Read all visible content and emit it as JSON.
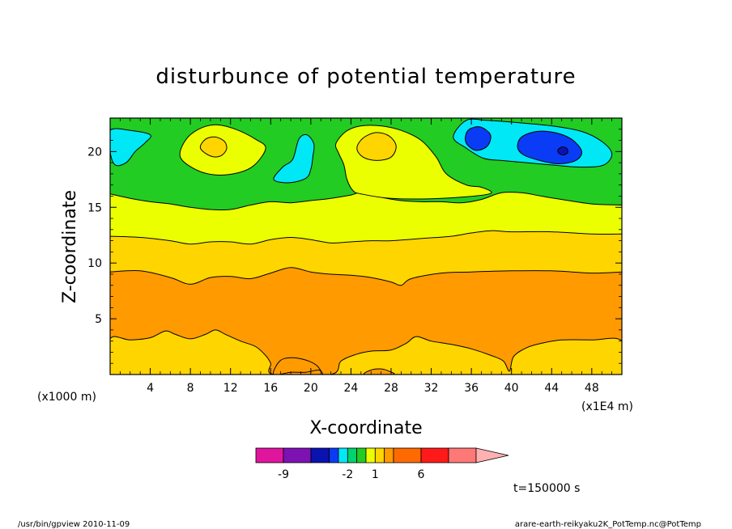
{
  "chart_data": {
    "type": "heatmap",
    "title": "disturbunce of potential temperature",
    "xlabel": "X-coordinate",
    "ylabel": "Z-coordinate",
    "x_unit_left": "(x1000 m)",
    "x_unit_right": "(x1E4 m)",
    "time_label": "t=150000 s",
    "footer_left": "/usr/bin/gpview   2010-11-09",
    "footer_right": "arare-earth-reikyaku2K_PotTemp.nc@PotTemp",
    "xlim": [
      0,
      51
    ],
    "ylim": [
      0,
      23
    ],
    "x_ticks": [
      "4",
      "8",
      "12",
      "16",
      "20",
      "24",
      "28",
      "32",
      "36",
      "40",
      "44",
      "48"
    ],
    "x_tick_values": [
      4,
      8,
      12,
      16,
      20,
      24,
      28,
      32,
      36,
      40,
      44,
      48
    ],
    "y_ticks": [
      "5",
      "10",
      "15",
      "20"
    ],
    "y_tick_values": [
      5,
      10,
      15,
      20
    ],
    "levels": [
      {
        "range": [
          -12,
          -9
        ],
        "color": "#e0159e"
      },
      {
        "range": [
          -9,
          -6
        ],
        "color": "#7d12b3"
      },
      {
        "range": [
          -6,
          -4
        ],
        "color": "#0a12b0"
      },
      {
        "range": [
          -4,
          -3
        ],
        "color": "#0a3cf5"
      },
      {
        "range": [
          -3,
          -2
        ],
        "color": "#00e8f5"
      },
      {
        "range": [
          -2,
          -1
        ],
        "color": "#00d26e"
      },
      {
        "range": [
          -1,
          0
        ],
        "color": "#22cc22"
      },
      {
        "range": [
          0,
          1
        ],
        "color": "#ecff00"
      },
      {
        "range": [
          1,
          2
        ],
        "color": "#ffd500"
      },
      {
        "range": [
          2,
          3
        ],
        "color": "#ff9a00"
      },
      {
        "range": [
          3,
          6
        ],
        "color": "#ff6a00"
      },
      {
        "range": [
          6,
          9
        ],
        "color": "#ff1a1a"
      },
      {
        "range": [
          9,
          12
        ],
        "color": "#ff7878"
      },
      {
        "range": [
          12,
          15
        ],
        "color": "#ffb0b0"
      }
    ],
    "colorbar_labels": [
      {
        "label": "-9",
        "level_index": 1
      },
      {
        "label": "-2",
        "level_index": 5
      },
      {
        "label": "1",
        "level_index": 8
      },
      {
        "label": "6",
        "level_index": 11
      }
    ],
    "bands": [
      {
        "name": "orange-lower",
        "color": "#ff9a00",
        "top": [
          [
            0,
            9.2
          ],
          [
            3,
            9.3
          ],
          [
            6,
            8.7
          ],
          [
            8,
            8.1
          ],
          [
            10,
            8.7
          ],
          [
            12,
            8.8
          ],
          [
            14,
            8.6
          ],
          [
            16,
            9.1
          ],
          [
            18,
            9.6
          ],
          [
            20,
            9.2
          ],
          [
            22,
            9.0
          ],
          [
            24,
            8.9
          ],
          [
            26,
            8.7
          ],
          [
            28,
            8.3
          ],
          [
            29,
            8.0
          ],
          [
            30,
            8.6
          ],
          [
            33,
            9.1
          ],
          [
            36,
            9.2
          ],
          [
            40,
            9.3
          ],
          [
            44,
            9.3
          ],
          [
            48,
            9.1
          ],
          [
            51,
            9.2
          ]
        ]
      },
      {
        "name": "gold-middle",
        "color": "#ffd500",
        "top": [
          [
            0,
            12.4
          ],
          [
            3,
            12.3
          ],
          [
            6,
            12.0
          ],
          [
            8,
            11.7
          ],
          [
            10,
            11.9
          ],
          [
            12,
            11.9
          ],
          [
            14,
            11.7
          ],
          [
            16,
            12.1
          ],
          [
            18,
            12.3
          ],
          [
            20,
            12.1
          ],
          [
            22,
            11.8
          ],
          [
            24,
            11.9
          ],
          [
            26,
            12.0
          ],
          [
            28,
            12.0
          ],
          [
            31,
            12.2
          ],
          [
            34,
            12.4
          ],
          [
            36,
            12.7
          ],
          [
            38,
            12.9
          ],
          [
            40,
            12.8
          ],
          [
            44,
            12.8
          ],
          [
            48,
            12.6
          ],
          [
            51,
            12.6
          ]
        ]
      },
      {
        "name": "yellow-upper",
        "color": "#ecff00",
        "top": [
          [
            0,
            16.2
          ],
          [
            2,
            15.8
          ],
          [
            4,
            15.5
          ],
          [
            6,
            15.3
          ],
          [
            8,
            15.0
          ],
          [
            10,
            14.8
          ],
          [
            12,
            14.8
          ],
          [
            14,
            15.2
          ],
          [
            16,
            15.5
          ],
          [
            18,
            15.4
          ],
          [
            20,
            15.6
          ],
          [
            22,
            15.8
          ],
          [
            24,
            16.1
          ],
          [
            25,
            16.3
          ],
          [
            27,
            15.9
          ],
          [
            29,
            15.6
          ],
          [
            31,
            15.5
          ],
          [
            33,
            15.5
          ],
          [
            35,
            15.4
          ],
          [
            37,
            15.7
          ],
          [
            39,
            16.3
          ],
          [
            41,
            16.3
          ],
          [
            43,
            16.0
          ],
          [
            45,
            15.7
          ],
          [
            48,
            15.3
          ],
          [
            51,
            15.2
          ]
        ]
      }
    ],
    "regions": [
      {
        "name": "yellow-bulge-top",
        "color": "#ecff00",
        "points": [
          [
            22.5,
            20.7
          ],
          [
            23.5,
            21.8
          ],
          [
            25,
            22.3
          ],
          [
            27,
            22.3
          ],
          [
            29,
            21.9
          ],
          [
            31,
            21.0
          ],
          [
            32.5,
            19.5
          ],
          [
            33.5,
            18.0
          ],
          [
            35.5,
            17.0
          ],
          [
            37,
            16.8
          ],
          [
            37.8,
            16.2
          ],
          [
            33,
            15.8
          ],
          [
            28,
            15.8
          ],
          [
            25,
            16.2
          ],
          [
            24.2,
            16.5
          ],
          [
            23.6,
            17.5
          ],
          [
            23.3,
            18.8
          ],
          [
            22.8,
            19.8
          ]
        ]
      },
      {
        "name": "yellow-left-blob",
        "color": "#ecff00",
        "points": [
          [
            7,
            19.5
          ],
          [
            7.5,
            21.0
          ],
          [
            8.8,
            22.0
          ],
          [
            10.5,
            22.4
          ],
          [
            12.5,
            22.0
          ],
          [
            14.5,
            21.1
          ],
          [
            15.5,
            20.3
          ],
          [
            14.4,
            18.8
          ],
          [
            12.8,
            18.1
          ],
          [
            10.5,
            17.9
          ],
          [
            8.5,
            18.4
          ]
        ]
      },
      {
        "name": "gold-center-spot",
        "color": "#ffd500",
        "points": [
          [
            24.6,
            20.3
          ],
          [
            25.2,
            21.2
          ],
          [
            26.5,
            21.7
          ],
          [
            27.8,
            21.4
          ],
          [
            28.5,
            20.5
          ],
          [
            28.0,
            19.5
          ],
          [
            26.6,
            19.2
          ],
          [
            25.2,
            19.5
          ]
        ]
      },
      {
        "name": "gold-left-spot",
        "color": "#ffd500",
        "points": [
          [
            9.0,
            20.3
          ],
          [
            9.5,
            21.1
          ],
          [
            10.5,
            21.3
          ],
          [
            11.4,
            20.9
          ],
          [
            11.6,
            20.2
          ],
          [
            11.0,
            19.6
          ],
          [
            10.0,
            19.6
          ]
        ]
      },
      {
        "name": "cyan-left-edge",
        "color": "#00e8f5",
        "points": [
          [
            0,
            20.0
          ],
          [
            0,
            21.9
          ],
          [
            2,
            21.9
          ],
          [
            4,
            21.5
          ],
          [
            3.5,
            20.8
          ],
          [
            2.5,
            20.0
          ],
          [
            1.6,
            19.0
          ],
          [
            0.5,
            18.8
          ]
        ]
      },
      {
        "name": "cyan-finger",
        "color": "#00e8f5",
        "points": [
          [
            16.3,
            17.5
          ],
          [
            17.2,
            18.6
          ],
          [
            18.2,
            19.3
          ],
          [
            18.8,
            21.1
          ],
          [
            19.6,
            21.5
          ],
          [
            20.3,
            20.7
          ],
          [
            20.2,
            19.5
          ],
          [
            20.0,
            18.4
          ],
          [
            19.5,
            17.6
          ],
          [
            17.8,
            17.2
          ]
        ]
      },
      {
        "name": "cyan-right",
        "color": "#00e8f5",
        "points": [
          [
            34.2,
            21.3
          ],
          [
            35.5,
            22.8
          ],
          [
            37.5,
            22.8
          ],
          [
            40.5,
            22.6
          ],
          [
            44,
            22.3
          ],
          [
            47,
            21.8
          ],
          [
            49,
            20.9
          ],
          [
            50,
            19.8
          ],
          [
            49.2,
            18.8
          ],
          [
            47,
            18.6
          ],
          [
            44,
            18.8
          ],
          [
            41.5,
            19.0
          ],
          [
            39,
            19.2
          ],
          [
            37.2,
            19.4
          ],
          [
            35.5,
            20.3
          ]
        ]
      },
      {
        "name": "blue-small",
        "color": "#0a3cf5",
        "points": [
          [
            35.4,
            21.3
          ],
          [
            35.8,
            22.0
          ],
          [
            36.9,
            22.2
          ],
          [
            37.9,
            21.5
          ],
          [
            37.6,
            20.5
          ],
          [
            36.5,
            20.1
          ],
          [
            35.6,
            20.6
          ]
        ]
      },
      {
        "name": "blue-large",
        "color": "#0a3cf5",
        "points": [
          [
            40.6,
            20.4
          ],
          [
            41.0,
            21.3
          ],
          [
            42.5,
            21.8
          ],
          [
            44.3,
            21.7
          ],
          [
            46.0,
            21.1
          ],
          [
            47.0,
            20.0
          ],
          [
            46.4,
            19.2
          ],
          [
            44.7,
            18.9
          ],
          [
            42.8,
            19.2
          ],
          [
            41.2,
            19.7
          ]
        ]
      },
      {
        "name": "navy-spot",
        "color": "#0a12b0",
        "points": [
          [
            44.6,
            20.1
          ],
          [
            45.0,
            20.4
          ],
          [
            45.5,
            20.3
          ],
          [
            45.6,
            19.9
          ],
          [
            45.2,
            19.7
          ],
          [
            44.8,
            19.8
          ]
        ]
      },
      {
        "name": "gold-bottom",
        "color": "#ffd500",
        "points": [
          [
            0,
            0
          ],
          [
            0,
            3.2
          ],
          [
            2,
            3.1
          ],
          [
            4,
            3.3
          ],
          [
            5.5,
            3.9
          ],
          [
            6.5,
            3.6
          ],
          [
            8,
            3.2
          ],
          [
            9.5,
            3.6
          ],
          [
            10.5,
            4.0
          ],
          [
            11.5,
            3.6
          ],
          [
            13,
            3.0
          ],
          [
            14.5,
            2.5
          ],
          [
            15.5,
            1.7
          ],
          [
            16,
            1.0
          ],
          [
            16.3,
            0
          ],
          [
            22,
            0
          ],
          [
            23,
            1.2
          ],
          [
            24.5,
            1.8
          ],
          [
            26,
            2.1
          ],
          [
            28,
            2.2
          ],
          [
            29.5,
            2.8
          ],
          [
            30.5,
            3.4
          ],
          [
            32,
            3.0
          ],
          [
            34,
            2.7
          ],
          [
            36,
            2.3
          ],
          [
            38,
            1.7
          ],
          [
            39.2,
            1.2
          ],
          [
            39.8,
            0.3
          ],
          [
            40.2,
            1.6
          ],
          [
            41.5,
            2.4
          ],
          [
            43,
            2.8
          ],
          [
            45,
            3.1
          ],
          [
            48,
            3.1
          ],
          [
            51,
            3.0
          ],
          [
            51,
            0
          ]
        ]
      },
      {
        "name": "orange-bottom-left-pocket",
        "color": "#ff9a00",
        "points": [
          [
            16.3,
            0
          ],
          [
            16.9,
            1.2
          ],
          [
            18,
            1.5
          ],
          [
            19.5,
            1.3
          ],
          [
            20.6,
            0.8
          ],
          [
            21.2,
            0
          ],
          [
            20.8,
            0.4
          ],
          [
            19.5,
            0.2
          ],
          [
            18,
            0.2
          ]
        ]
      },
      {
        "name": "orange-bottom-mid-pocket",
        "color": "#ff9a00",
        "points": [
          [
            25.4,
            0
          ],
          [
            26,
            0.4
          ],
          [
            27,
            0.5
          ],
          [
            27.8,
            0.3
          ],
          [
            28.2,
            0
          ]
        ]
      }
    ]
  }
}
